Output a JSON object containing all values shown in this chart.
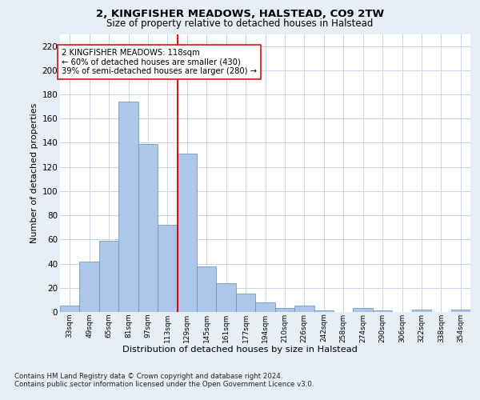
{
  "title1": "2, KINGFISHER MEADOWS, HALSTEAD, CO9 2TW",
  "title2": "Size of property relative to detached houses in Halstead",
  "xlabel": "Distribution of detached houses by size in Halstead",
  "ylabel": "Number of detached properties",
  "categories": [
    "33sqm",
    "49sqm",
    "65sqm",
    "81sqm",
    "97sqm",
    "113sqm",
    "129sqm",
    "145sqm",
    "161sqm",
    "177sqm",
    "194sqm",
    "210sqm",
    "226sqm",
    "242sqm",
    "258sqm",
    "274sqm",
    "290sqm",
    "306sqm",
    "322sqm",
    "338sqm",
    "354sqm"
  ],
  "values": [
    5,
    42,
    59,
    174,
    139,
    72,
    131,
    38,
    24,
    15,
    8,
    3,
    5,
    1,
    0,
    3,
    1,
    0,
    2,
    0,
    2
  ],
  "bar_color": "#aec6e8",
  "bar_edge_color": "#5a8fc2",
  "vline_x": 5.5,
  "vline_color": "#cc0000",
  "annotation_text": "2 KINGFISHER MEADOWS: 118sqm\n← 60% of detached houses are smaller (430)\n39% of semi-detached houses are larger (280) →",
  "annotation_box_color": "#ffffff",
  "annotation_box_edge": "#cc0000",
  "ylim": [
    0,
    230
  ],
  "yticks": [
    0,
    20,
    40,
    60,
    80,
    100,
    120,
    140,
    160,
    180,
    200,
    220
  ],
  "footnote1": "Contains HM Land Registry data © Crown copyright and database right 2024.",
  "footnote2": "Contains public sector information licensed under the Open Government Licence v3.0.",
  "bg_color": "#e8eef8",
  "plot_bg_color": "#ffffff",
  "grid_color": "#c8d4e8"
}
